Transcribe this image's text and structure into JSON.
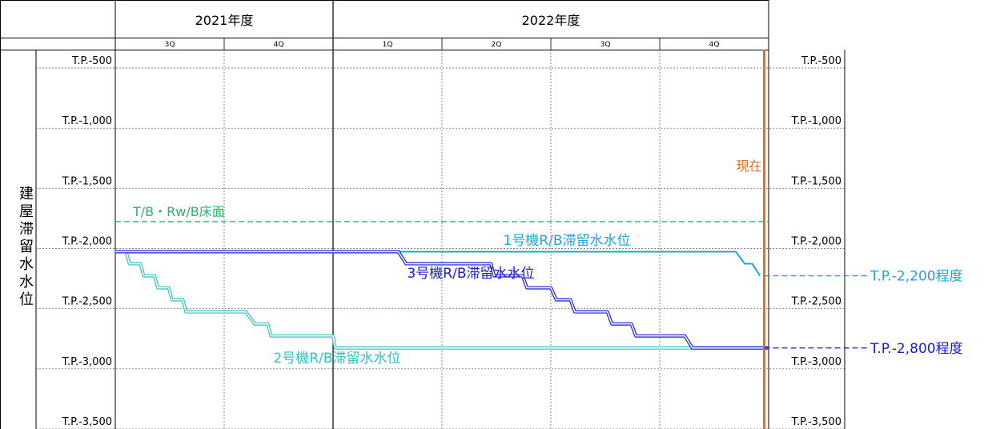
{
  "chart_data": {
    "type": "line",
    "ylabel": "建屋滞留水水位",
    "years": [
      {
        "label": "2021年度",
        "quarters": [
          "3Q",
          "4Q"
        ]
      },
      {
        "label": "2022年度",
        "quarters": [
          "1Q",
          "2Q",
          "3Q",
          "4Q"
        ]
      }
    ],
    "y_ticks": [
      {
        "value": -500,
        "label": "T.P.-500"
      },
      {
        "value": -1000,
        "label": "T.P.-1,000"
      },
      {
        "value": -1500,
        "label": "T.P.-1,500"
      },
      {
        "value": -2000,
        "label": "T.P.-2,000"
      },
      {
        "value": -2500,
        "label": "T.P.-2,500"
      },
      {
        "value": -3000,
        "label": "T.P.-3,000"
      },
      {
        "value": -3500,
        "label": "T.P.-3,500"
      }
    ],
    "ylim": [
      -3500,
      -500
    ],
    "xlim": [
      0,
      6
    ],
    "grid": true,
    "series": [
      {
        "name": "1号機R/B滞留水水位",
        "color": "#1aa7e0",
        "x": [
          0,
          2.6,
          5.7,
          5.78,
          5.85,
          5.92
        ],
        "y": [
          -2000,
          -2000,
          -2000,
          -2100,
          -2100,
          -2200
        ]
      },
      {
        "name": "2号機R/B滞留水水位",
        "color": "#33c2c2",
        "x": [
          0,
          0.1,
          0.13,
          0.23,
          0.26,
          0.36,
          0.39,
          0.49,
          0.52,
          0.62,
          0.65,
          0.75,
          0.78,
          0.87,
          0.9,
          1.2,
          1.28,
          1.4,
          1.43,
          1.57,
          1.6,
          1.8,
          2.0,
          2.02,
          4.6,
          4.8,
          5.58,
          6.0
        ],
        "y": [
          -2000,
          -2000,
          -2100,
          -2100,
          -2200,
          -2200,
          -2300,
          -2300,
          -2400,
          -2400,
          -2500,
          -2500,
          -2500,
          -2500,
          -2500,
          -2500,
          -2600,
          -2600,
          -2700,
          -2700,
          -2700,
          -2700,
          -2700,
          -2800,
          -2800,
          -2800,
          -2800,
          -2800
        ]
      },
      {
        "name": "3号機R/B滞留水水位",
        "color": "#1a1ad6",
        "x": [
          0,
          2.6,
          2.67,
          3.4,
          3.42,
          3.45,
          3.48,
          3.52,
          3.57,
          3.6,
          3.63,
          3.74,
          3.78,
          4.0,
          4.05,
          4.18,
          4.22,
          4.4,
          4.42,
          4.52,
          4.56,
          4.74,
          4.78,
          4.95,
          5.0,
          5.23,
          5.3,
          5.55,
          5.62,
          6.0
        ],
        "y": [
          -2000,
          -2000,
          -2100,
          -2100,
          -2100,
          -2100,
          -2200,
          -2200,
          -2200,
          -2200,
          -2200,
          -2200,
          -2300,
          -2300,
          -2400,
          -2400,
          -2500,
          -2500,
          -2500,
          -2500,
          -2600,
          -2600,
          -2700,
          -2700,
          -2700,
          -2700,
          -2800,
          -2800,
          -2800,
          -2800
        ]
      }
    ],
    "reference_lines": [
      {
        "name": "T/B・Rw/B床面",
        "value": -1750,
        "color": "#2db36a"
      }
    ],
    "current_marker": {
      "label": "現在",
      "x": 5.96,
      "color": "#e07020"
    },
    "callouts": [
      {
        "label": "T.P.-2,200程度",
        "value": -2200,
        "color": "#1aa7e0"
      },
      {
        "label": "T.P.-2,800程度",
        "value": -2800,
        "color": "#1a1ad6"
      }
    ]
  }
}
